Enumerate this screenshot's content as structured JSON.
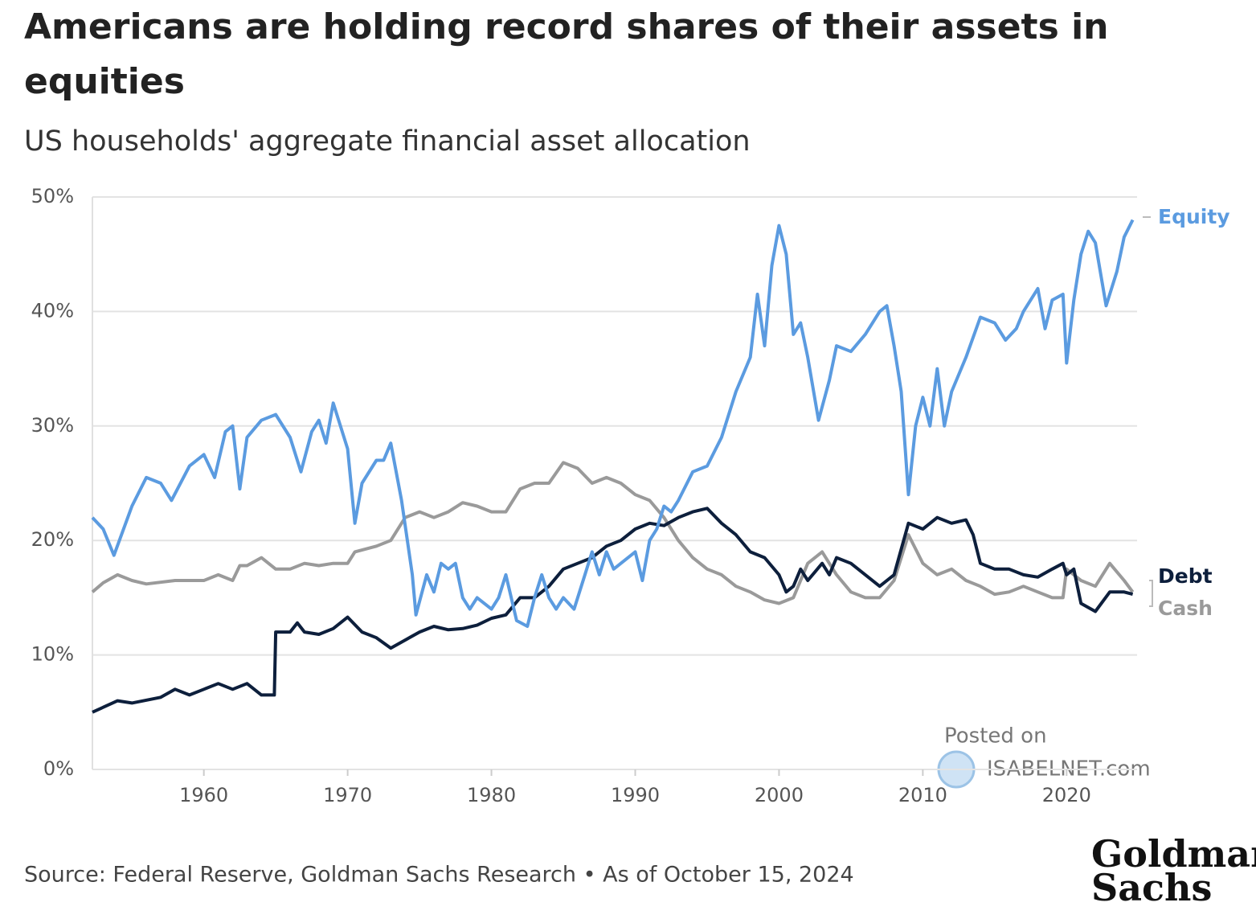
{
  "chart_data": {
    "type": "line",
    "title": [
      "Americans are holding record shares of their assets in",
      "equities"
    ],
    "subtitle": "US households' aggregate financial asset allocation",
    "source": "Source: Federal Reserve, Goldman Sachs Research • As of October 15, 2024",
    "watermark": [
      "Posted on",
      "ISABELNET.com"
    ],
    "logo": [
      "Goldman",
      "Sachs"
    ],
    "xlim": [
      1952.25,
      2024.9
    ],
    "xticks": [
      1960,
      1970,
      1980,
      1990,
      2000,
      2010,
      2020
    ],
    "ylim": [
      0,
      50
    ],
    "yticks": [
      {
        "value": 0,
        "label": "0%"
      },
      {
        "value": 10,
        "label": "10%"
      },
      {
        "value": 20,
        "label": "20%"
      },
      {
        "value": 30,
        "label": "30%"
      },
      {
        "value": 40,
        "label": "40%"
      },
      {
        "value": 50,
        "label": "50%"
      }
    ],
    "grid": true,
    "series": [
      {
        "name": "Equity",
        "color": "#5b9be0",
        "x": [
          1952.25,
          1953,
          1953.75,
          1955,
          1956,
          1957,
          1957.75,
          1959,
          1960,
          1960.75,
          1961.5,
          1962,
          1962.5,
          1963,
          1964,
          1965,
          1966,
          1966.75,
          1967.5,
          1968,
          1968.5,
          1969,
          1970,
          1970.5,
          1971,
          1972,
          1972.5,
          1973,
          1973.75,
          1974.5,
          1974.75,
          1975.5,
          1976,
          1976.5,
          1977,
          1977.5,
          1978,
          1978.5,
          1979,
          1980,
          1980.5,
          1981,
          1981.75,
          1982.5,
          1983,
          1983.5,
          1984,
          1984.5,
          1985,
          1985.75,
          1986.5,
          1987,
          1987.5,
          1988,
          1988.5,
          1989,
          1990,
          1990.5,
          1991,
          1991.5,
          1992,
          1992.5,
          1993,
          1994,
          1995,
          1996,
          1997,
          1998,
          1998.5,
          1999,
          1999.5,
          2000,
          2000.5,
          2001,
          2001.5,
          2002,
          2002.75,
          2003.5,
          2004,
          2005,
          2006,
          2007,
          2007.5,
          2008,
          2008.5,
          2009,
          2009.5,
          2010,
          2010.5,
          2011,
          2011.5,
          2012,
          2013,
          2014,
          2015,
          2015.75,
          2016.5,
          2017,
          2018,
          2018.5,
          2019,
          2019.75,
          2020,
          2020.5,
          2021,
          2021.5,
          2022,
          2022.75,
          2023.5,
          2024,
          2024.6
        ],
        "values": [
          22,
          21,
          18.7,
          23,
          25.5,
          25,
          23.5,
          26.5,
          27.5,
          25.5,
          29.5,
          30,
          24.5,
          29,
          30.5,
          31,
          29,
          26,
          29.5,
          30.5,
          28.5,
          32,
          28,
          21.5,
          25,
          27,
          27,
          28.5,
          23.5,
          17,
          13.5,
          17,
          15.5,
          18,
          17.5,
          18,
          15,
          14,
          15,
          14,
          15,
          17,
          13,
          12.5,
          15,
          17,
          15,
          14,
          15,
          14,
          17,
          19,
          17,
          19,
          17.5,
          18,
          19,
          16.5,
          20,
          21,
          23,
          22.5,
          23.5,
          26,
          26.5,
          29,
          33,
          36,
          41.5,
          37,
          44,
          47.5,
          45,
          38,
          39,
          36,
          30.5,
          34,
          37,
          36.5,
          38,
          40,
          40.5,
          37,
          33,
          24,
          30,
          32.5,
          30,
          35,
          30,
          33,
          36,
          39.5,
          39,
          37.5,
          38.5,
          40,
          42,
          38.5,
          41,
          41.5,
          35.5,
          41,
          45,
          47,
          46,
          40.5,
          43.5,
          46.5,
          48
        ]
      },
      {
        "name": "Debt",
        "color": "#0d1f3c",
        "x": [
          1952.25,
          1954,
          1955,
          1957,
          1958,
          1959,
          1960,
          1961,
          1962,
          1963,
          1964,
          1964.9,
          1965,
          1966,
          1966.5,
          1967,
          1968,
          1969,
          1970,
          1971,
          1972,
          1973,
          1974,
          1975,
          1976,
          1977,
          1978,
          1979,
          1980,
          1981,
          1982,
          1983,
          1984,
          1985,
          1986,
          1987,
          1988,
          1989,
          1990,
          1991,
          1992,
          1993,
          1994,
          1995,
          1996,
          1997,
          1998,
          1999,
          2000,
          2000.5,
          2001,
          2001.5,
          2002,
          2003,
          2003.5,
          2004,
          2005,
          2006,
          2007,
          2008,
          2009,
          2010,
          2011,
          2012,
          2013,
          2013.5,
          2014,
          2015,
          2016,
          2017,
          2018,
          2019,
          2019.75,
          2020,
          2020.5,
          2021,
          2022,
          2023,
          2024,
          2024.6
        ],
        "values": [
          5,
          6,
          5.8,
          6.3,
          7,
          6.5,
          7,
          7.5,
          7,
          7.5,
          6.5,
          6.5,
          12,
          12,
          12.8,
          12,
          11.8,
          12.3,
          13.3,
          12,
          11.5,
          10.6,
          11.3,
          12,
          12.5,
          12.2,
          12.3,
          12.6,
          13.2,
          13.5,
          15,
          15,
          16,
          17.5,
          18,
          18.5,
          19.5,
          20,
          21,
          21.5,
          21.3,
          22,
          22.5,
          22.8,
          21.5,
          20.5,
          19,
          18.5,
          17,
          15.5,
          16,
          17.5,
          16.5,
          18,
          17,
          18.5,
          18,
          17,
          16,
          17,
          21.5,
          21,
          22,
          21.5,
          21.8,
          20.5,
          18,
          17.5,
          17.5,
          17,
          16.8,
          17.5,
          18,
          17,
          17.5,
          14.5,
          13.8,
          15.5,
          15.5,
          15.3
        ]
      },
      {
        "name": "Cash",
        "color": "#9a9a9a",
        "x": [
          1952.25,
          1953,
          1954,
          1955,
          1956,
          1958,
          1960,
          1961,
          1962,
          1962.5,
          1963,
          1964,
          1965,
          1966,
          1967,
          1968,
          1969,
          1970,
          1970.5,
          1972,
          1973,
          1974,
          1975,
          1976,
          1977,
          1978,
          1979,
          1980,
          1981,
          1982,
          1983,
          1984,
          1985,
          1986,
          1987,
          1988,
          1989,
          1990,
          1991,
          1992,
          1993,
          1994,
          1995,
          1996,
          1997,
          1998,
          1999,
          2000,
          2001,
          2002,
          2003,
          2004,
          2005,
          2006,
          2007,
          2008,
          2009,
          2010,
          2011,
          2012,
          2013,
          2014,
          2015,
          2016,
          2017,
          2018,
          2019,
          2019.75,
          2020,
          2021,
          2022,
          2023,
          2024,
          2024.6
        ],
        "values": [
          15.5,
          16.3,
          17,
          16.5,
          16.2,
          16.5,
          16.5,
          17,
          16.5,
          17.8,
          17.8,
          18.5,
          17.5,
          17.5,
          18,
          17.8,
          18,
          18,
          19,
          19.5,
          20,
          22,
          22.5,
          22,
          22.5,
          23.3,
          23,
          22.5,
          22.5,
          24.5,
          25,
          25,
          26.8,
          26.3,
          25,
          25.5,
          25,
          24,
          23.5,
          22,
          20,
          18.5,
          17.5,
          17,
          16,
          15.5,
          14.8,
          14.5,
          15,
          18,
          19,
          17,
          15.5,
          15,
          15,
          16.5,
          20.5,
          18,
          17,
          17.5,
          16.5,
          16,
          15.3,
          15.5,
          16,
          15.5,
          15,
          15,
          17.5,
          16.5,
          16,
          18,
          16.5,
          15.5
        ]
      }
    ]
  }
}
